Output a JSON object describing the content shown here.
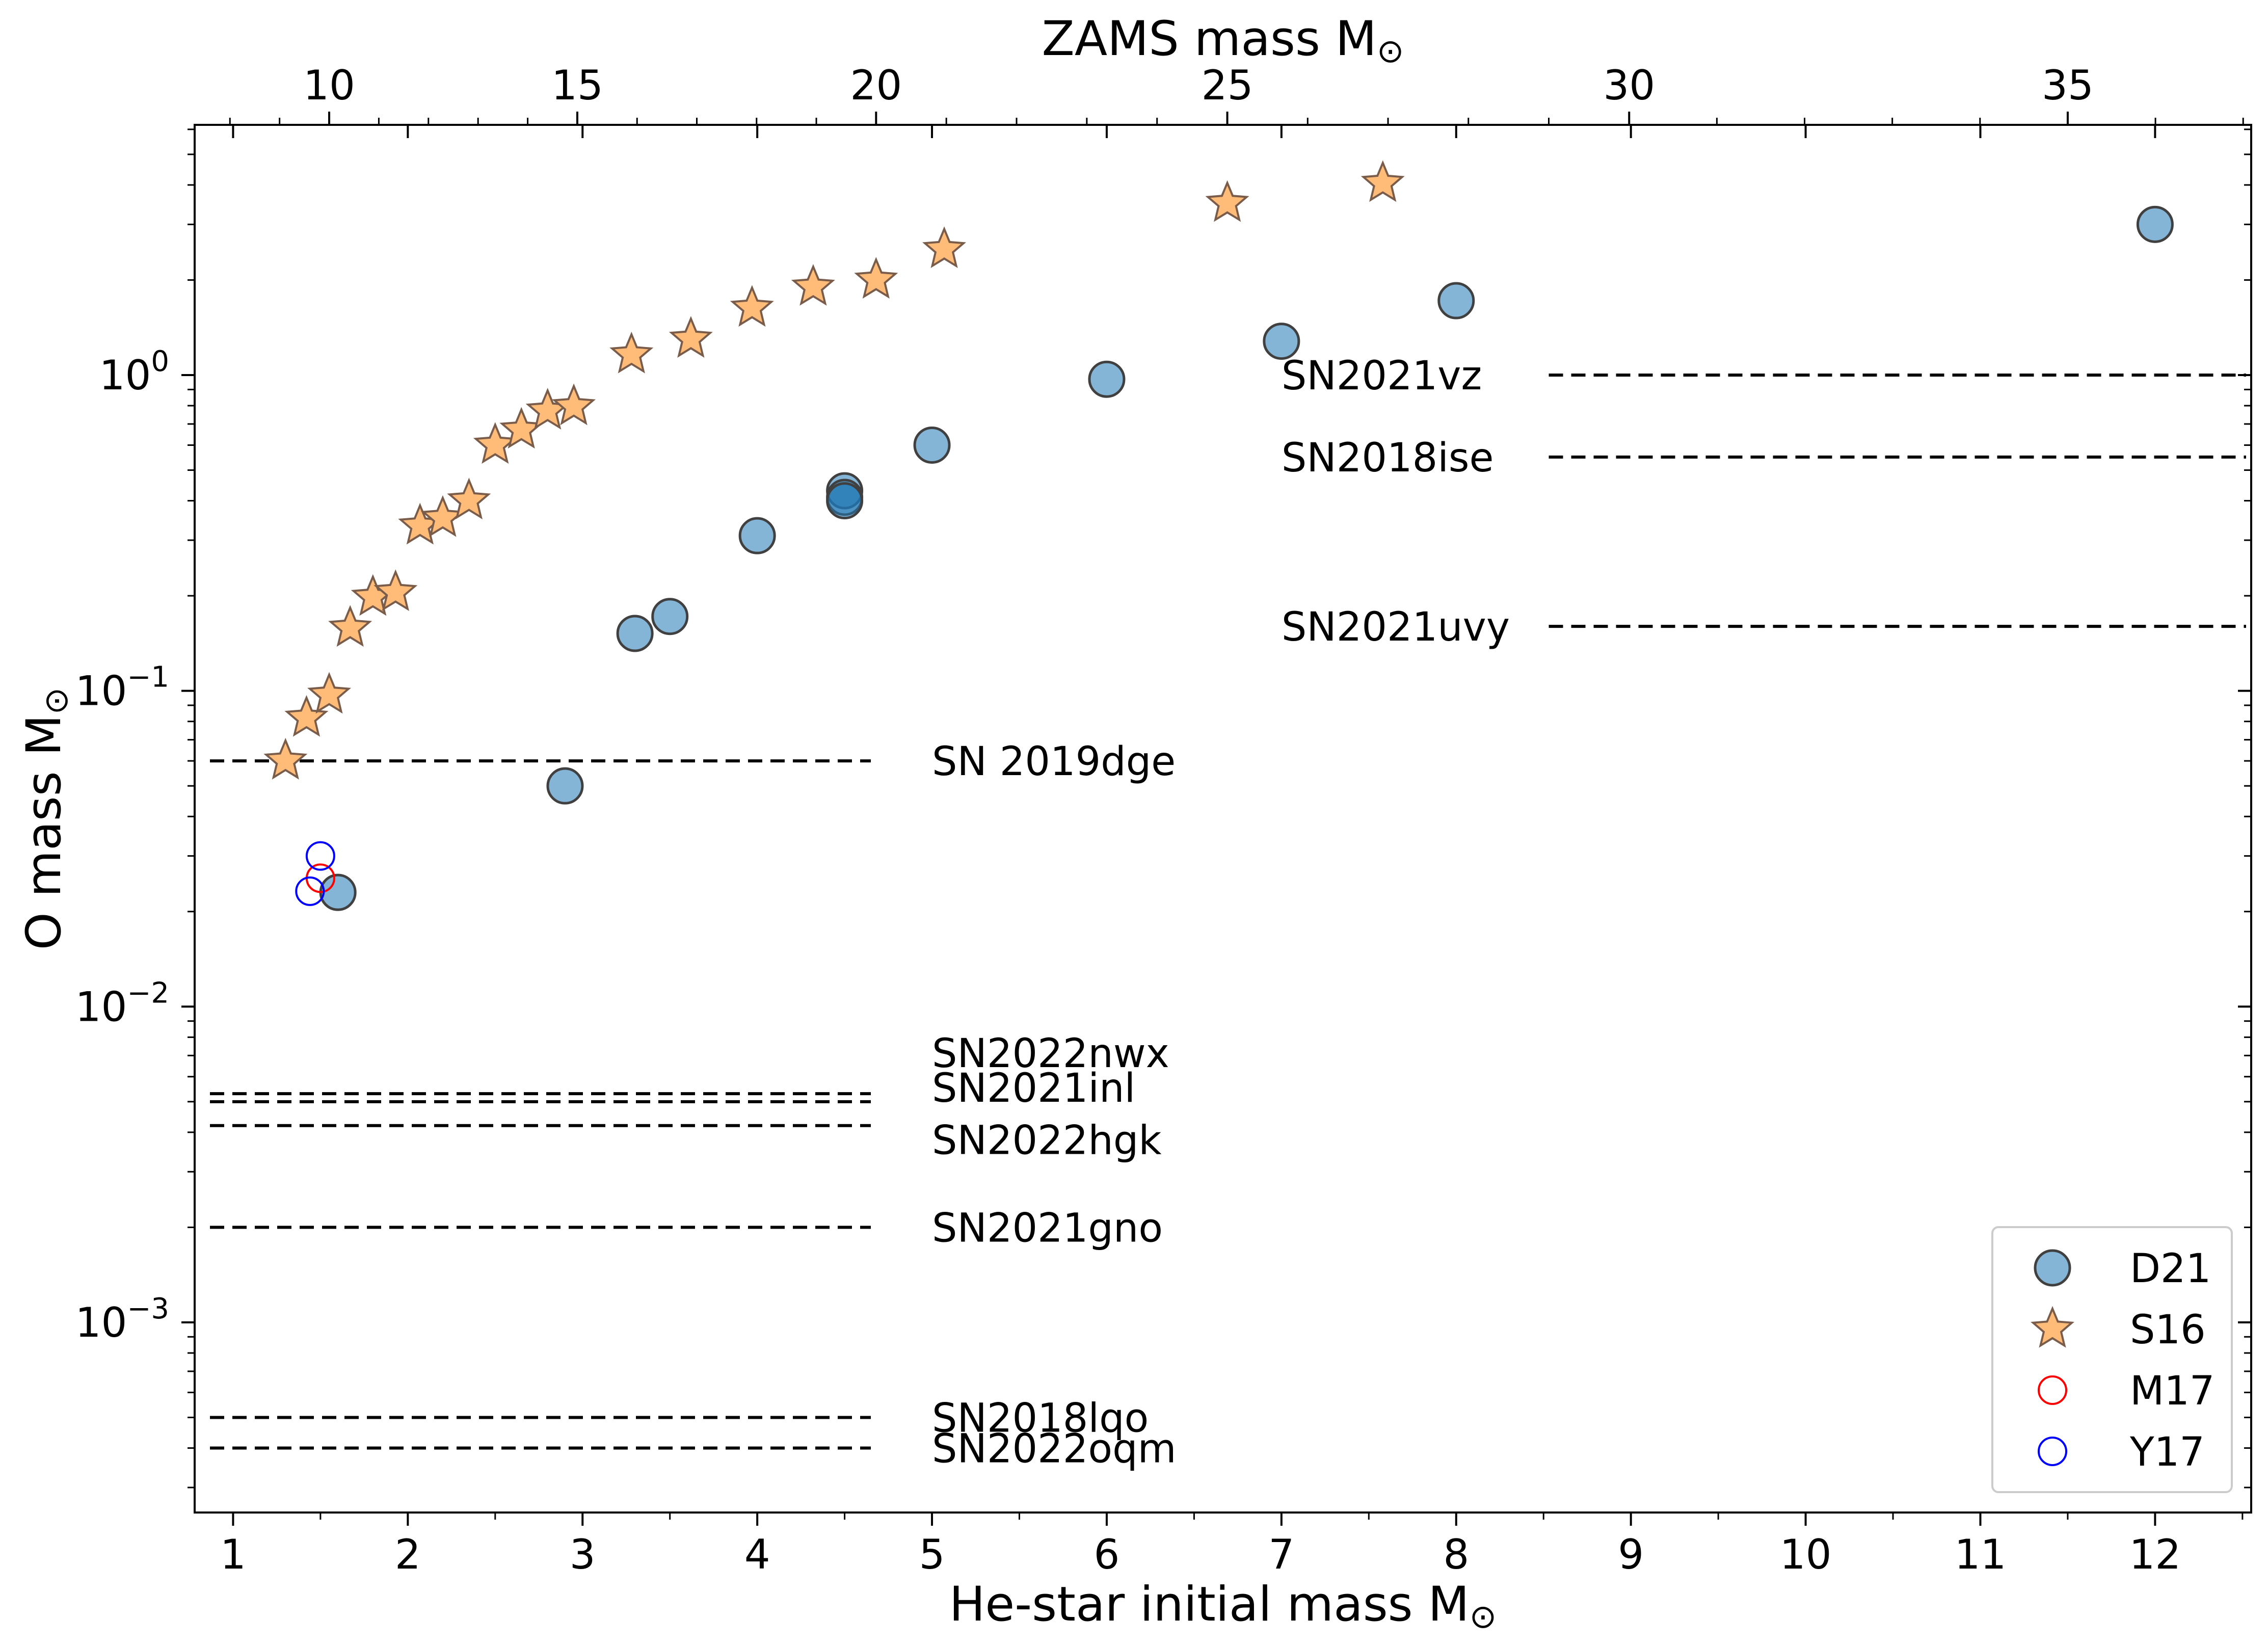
{
  "chart_data": {
    "type": "scatter",
    "title": "",
    "xlabel": "He-star initial mass M",
    "x2label": "ZAMS mass M",
    "ylabel": "O mass M",
    "label_symbol": "⊙",
    "x_scale": "linear",
    "y_scale": "log",
    "xlim": [
      0.78,
      12.55
    ],
    "ylim": [
      0.00025,
      6.2
    ],
    "x_ticks": [
      1,
      2,
      3,
      4,
      5,
      6,
      7,
      8,
      9,
      10,
      11,
      12
    ],
    "x_tick_labels": [
      "1",
      "2",
      "3",
      "4",
      "5",
      "6",
      "7",
      "8",
      "9",
      "10",
      "11",
      "12"
    ],
    "y_ticks": [
      {
        "value": 0.001,
        "mantissa": "10",
        "exponent": "−3"
      },
      {
        "value": 0.01,
        "mantissa": "10",
        "exponent": "−2"
      },
      {
        "value": 0.1,
        "mantissa": "10",
        "exponent": "−1"
      },
      {
        "value": 1,
        "mantissa": "10",
        "exponent": "0"
      }
    ],
    "top_axis": {
      "ticks": [
        {
          "he_mass": 1.55,
          "label": "10"
        },
        {
          "he_mass": 2.97,
          "label": "15"
        },
        {
          "he_mass": 4.68,
          "label": "20"
        },
        {
          "he_mass": 6.69,
          "label": "25"
        },
        {
          "he_mass": 8.99,
          "label": "30"
        },
        {
          "he_mass": 11.5,
          "label": "35"
        }
      ]
    },
    "series": [
      {
        "name": "D21",
        "marker": "circle",
        "color": "#1f77b4",
        "points": [
          {
            "x": 1.6,
            "y": 0.023
          },
          {
            "x": 2.9,
            "y": 0.05
          },
          {
            "x": 3.3,
            "y": 0.152
          },
          {
            "x": 3.5,
            "y": 0.172
          },
          {
            "x": 4.0,
            "y": 0.31
          },
          {
            "x": 4.5,
            "y": 0.43
          },
          {
            "x": 4.5,
            "y": 0.41
          },
          {
            "x": 4.5,
            "y": 0.4
          },
          {
            "x": 5.0,
            "y": 0.6
          },
          {
            "x": 6.0,
            "y": 0.97
          },
          {
            "x": 7.0,
            "y": 1.28
          },
          {
            "x": 8.0,
            "y": 1.72
          },
          {
            "x": 12.0,
            "y": 3.0
          }
        ]
      },
      {
        "name": "S16",
        "marker": "star",
        "color": "#ffbb78",
        "points": [
          {
            "x": 1.3,
            "y": 0.06
          },
          {
            "x": 1.42,
            "y": 0.082
          },
          {
            "x": 1.55,
            "y": 0.097
          },
          {
            "x": 1.67,
            "y": 0.158
          },
          {
            "x": 1.8,
            "y": 0.198
          },
          {
            "x": 1.93,
            "y": 0.205
          },
          {
            "x": 2.07,
            "y": 0.333
          },
          {
            "x": 2.2,
            "y": 0.352
          },
          {
            "x": 2.35,
            "y": 0.4
          },
          {
            "x": 2.5,
            "y": 0.6
          },
          {
            "x": 2.65,
            "y": 0.67
          },
          {
            "x": 2.8,
            "y": 0.77
          },
          {
            "x": 2.95,
            "y": 0.795
          },
          {
            "x": 3.28,
            "y": 1.16
          },
          {
            "x": 3.62,
            "y": 1.3
          },
          {
            "x": 3.97,
            "y": 1.63
          },
          {
            "x": 4.32,
            "y": 1.9
          },
          {
            "x": 4.68,
            "y": 2.0
          },
          {
            "x": 5.07,
            "y": 2.5
          },
          {
            "x": 6.69,
            "y": 3.5
          },
          {
            "x": 7.58,
            "y": 4.05
          }
        ]
      },
      {
        "name": "M17",
        "marker": "open-circle",
        "color": "#ff0000",
        "points": [
          {
            "x": 1.5,
            "y": 0.0255
          }
        ]
      },
      {
        "name": "Y17",
        "marker": "open-circle",
        "color": "#0000ff",
        "points": [
          {
            "x": 1.5,
            "y": 0.03
          },
          {
            "x": 1.44,
            "y": 0.0232
          }
        ]
      }
    ],
    "reference_lines": [
      {
        "label": "SN2021vz",
        "y": 1.0,
        "side": "right"
      },
      {
        "label": "SN2018ise",
        "y": 0.55,
        "side": "right"
      },
      {
        "label": "SN2021uvy",
        "y": 0.16,
        "side": "right"
      },
      {
        "label": "SN 2019dge",
        "y": 0.06,
        "side": "left"
      },
      {
        "label": "SN2022nwx",
        "y": 0.0053,
        "side": "left"
      },
      {
        "label": "SN2021inl",
        "y": 0.005,
        "side": "left"
      },
      {
        "label": "SN2022hgk",
        "y": 0.0042,
        "side": "left"
      },
      {
        "label": "SN2021gno",
        "y": 0.002,
        "side": "left"
      },
      {
        "label": "SN2018lqo",
        "y": 0.0005,
        "side": "left"
      },
      {
        "label": "SN2022oqm",
        "y": 0.0004,
        "side": "left"
      }
    ],
    "legend": {
      "placement": "lower-right",
      "entries": [
        "D21",
        "S16",
        "M17",
        "Y17"
      ]
    },
    "grid": false
  }
}
